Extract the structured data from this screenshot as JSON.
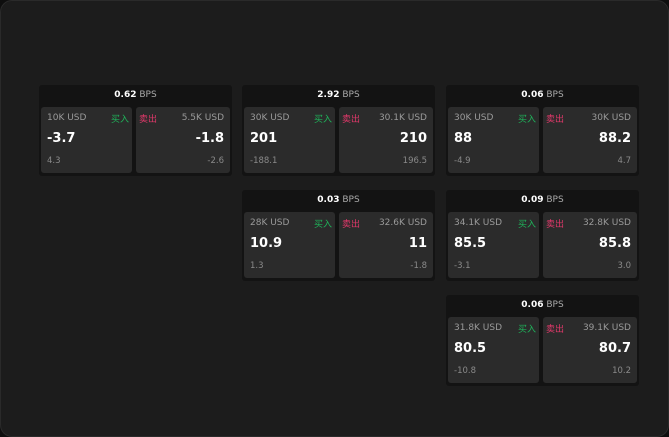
{
  "unit": "BPS",
  "buy_label": "买入",
  "sell_label": "卖出",
  "colors": {
    "buy": "#1fb35a",
    "sell": "#e0386a"
  },
  "cards": [
    {
      "spread": "0.62",
      "buy": {
        "size": "10K USD",
        "price": "-3.7",
        "change": "4.3"
      },
      "sell": {
        "size": "5.5K USD",
        "price": "-1.8",
        "change": "-2.6"
      }
    },
    {
      "spread": "2.92",
      "buy": {
        "size": "30K USD",
        "price": "201",
        "change": "-188.1"
      },
      "sell": {
        "size": "30.1K USD",
        "price": "210",
        "change": "196.5"
      }
    },
    {
      "spread": "0.06",
      "buy": {
        "size": "30K USD",
        "price": "88",
        "change": "-4.9"
      },
      "sell": {
        "size": "30K USD",
        "price": "88.2",
        "change": "4.7"
      }
    },
    {
      "spread": "0.03",
      "buy": {
        "size": "28K USD",
        "price": "10.9",
        "change": "1.3"
      },
      "sell": {
        "size": "32.6K USD",
        "price": "11",
        "change": "-1.8"
      }
    },
    {
      "spread": "0.09",
      "buy": {
        "size": "34.1K USD",
        "price": "85.5",
        "change": "-3.1"
      },
      "sell": {
        "size": "32.8K USD",
        "price": "85.8",
        "change": "3.0"
      }
    },
    {
      "spread": "0.06",
      "buy": {
        "size": "31.8K USD",
        "price": "80.5",
        "change": "-10.8"
      },
      "sell": {
        "size": "39.1K USD",
        "price": "80.7",
        "change": "10.2"
      }
    }
  ]
}
